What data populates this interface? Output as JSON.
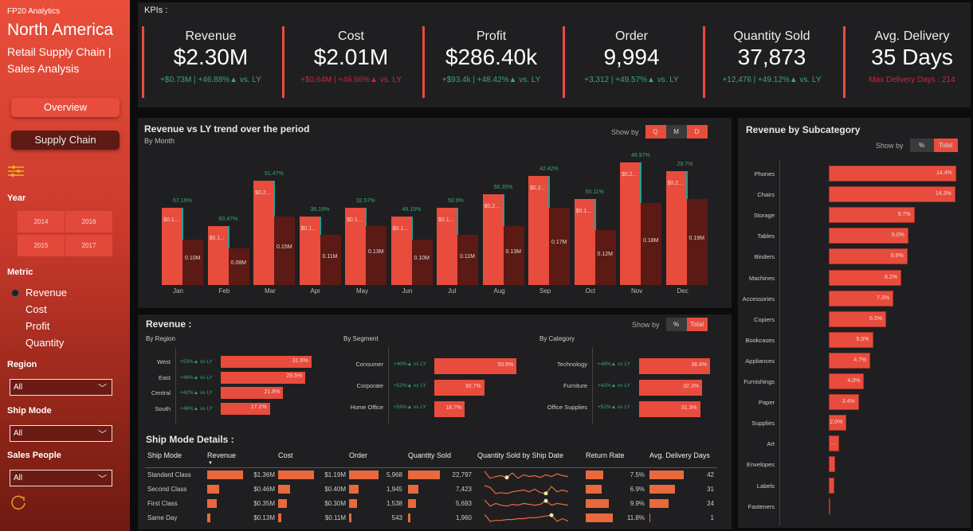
{
  "sidebar": {
    "brand": "FP20 Analytics",
    "title": "North America",
    "subtitle": "Retail Supply Chain | Sales Analysis",
    "nav": [
      {
        "label": "Overview"
      },
      {
        "label": "Supply Chain"
      }
    ],
    "filter_icon": "sliders-icon",
    "year_label": "Year",
    "years": [
      "2014",
      "2016",
      "2015",
      "2017"
    ],
    "metric_label": "Metric",
    "metrics": [
      {
        "label": "Revenue",
        "selected": true
      },
      {
        "label": "Cost",
        "selected": false
      },
      {
        "label": "Profit",
        "selected": false
      },
      {
        "label": "Quantity",
        "selected": false
      }
    ],
    "dropdowns": [
      {
        "label": "Region",
        "value": "All"
      },
      {
        "label": "Ship Mode",
        "value": "All"
      },
      {
        "label": "Sales People",
        "value": "All"
      }
    ],
    "reset_icon": "refresh-icon"
  },
  "kpis": {
    "header": "KPIs :",
    "items": [
      {
        "title": "Revenue",
        "value": "$2.30M",
        "delta": "+$0.73M | +46.88%▲ vs. LY",
        "negative": false
      },
      {
        "title": "Cost",
        "value": "$2.01M",
        "delta": "+$0.64M | +46.66%▲ vs. LY",
        "negative": true
      },
      {
        "title": "Profit",
        "value": "$286.40k",
        "delta": "+$93.4k | +48.42%▲ vs. LY",
        "negative": false
      },
      {
        "title": "Order",
        "value": "9,994",
        "delta": "+3,312 | +49.57%▲ vs. LY",
        "negative": false
      },
      {
        "title": "Quantity Sold",
        "value": "37,873",
        "delta": "+12,476 | +49.12%▲ vs. LY",
        "negative": false
      },
      {
        "title": "Avg. Delivery",
        "value": "35 Days",
        "delta": "Max Delivery Days : 214",
        "negative": true
      }
    ]
  },
  "trend": {
    "title": "Revenue vs LY trend over the period",
    "subtitle": "By Month",
    "showby_label": "Show by",
    "showby_options": [
      {
        "label": "Q",
        "active": true
      },
      {
        "label": "M",
        "active": false
      },
      {
        "label": "D",
        "active": true
      }
    ]
  },
  "chart_data": {
    "type": "bar",
    "categories": [
      "Jan",
      "Feb",
      "Mar",
      "Apr",
      "May",
      "Jun",
      "Jul",
      "Aug",
      "Sep",
      "Oct",
      "Nov",
      "Dec"
    ],
    "series": [
      {
        "values": [
          0.17,
          0.13,
          0.23,
          0.15,
          0.17,
          0.15,
          0.17,
          0.2,
          0.24,
          0.19,
          0.27,
          0.25
        ],
        "labels": [
          "$0.1...",
          "$0.1...",
          "$0.2...",
          "$0.1...",
          "$0.1...",
          "$0.1...",
          "$0.1...",
          "$0.2...",
          "$0.2...",
          "$0.1...",
          "$0.2...",
          "$0.2..."
        ]
      },
      {
        "values": [
          0.1,
          0.08,
          0.15,
          0.11,
          0.13,
          0.1,
          0.11,
          0.13,
          0.17,
          0.12,
          0.18,
          0.19
        ],
        "labels": [
          "0.10M",
          "0.08M",
          "0.15M",
          "0.11M",
          "0.13M",
          "0.10M",
          "0.11M",
          "0.13M",
          "0.17M",
          "0.12M",
          "0.18M",
          "0.19M"
        ]
      }
    ],
    "growth": [
      "67.19%",
      "60.47%",
      "51.47%",
      "36.19%",
      "32.57%",
      "49.15%",
      "50.9%",
      "56.35%",
      "42.42%",
      "55.11%",
      "48.97%",
      "29.7%"
    ],
    "colors": {
      "current": "#e84c3d",
      "ly": "#5c1a14",
      "growth": "#2a9d8f"
    }
  },
  "revenue": {
    "title": "Revenue :",
    "showby_label": "Show by",
    "showby_options": [
      {
        "label": "%",
        "active": false
      },
      {
        "label": "Total",
        "active": true
      }
    ],
    "groups": [
      {
        "title": "By Region",
        "items": [
          {
            "name": "West",
            "growth": "+53%▲ vs LY",
            "pct": 31.6,
            "label": "31.6%"
          },
          {
            "name": "East",
            "growth": "+46%▲ vs LY",
            "pct": 29.5,
            "label": "29.5%"
          },
          {
            "name": "Central",
            "growth": "+42%▲ vs LY",
            "pct": 21.8,
            "label": "21.8%"
          },
          {
            "name": "South",
            "growth": "+46%▲ vs LY",
            "pct": 17.1,
            "label": "17.1%"
          }
        ]
      },
      {
        "title": "By Segment",
        "items": [
          {
            "name": "Consumer",
            "growth": "+40%▲ vs LY",
            "pct": 50.6,
            "label": "50.6%"
          },
          {
            "name": "Corporate",
            "growth": "+52%▲ vs LY",
            "pct": 30.7,
            "label": "30.7%"
          },
          {
            "name": "Home Office",
            "growth": "+59%▲ vs LY",
            "pct": 18.7,
            "label": "18.7%"
          }
        ]
      },
      {
        "title": "By Category",
        "items": [
          {
            "name": "Technology",
            "growth": "+48%▲ vs LY",
            "pct": 36.4,
            "label": "36.4%"
          },
          {
            "name": "Furniture",
            "growth": "+41%▲ vs LY",
            "pct": 32.3,
            "label": "32.3%"
          },
          {
            "name": "Office Supplies",
            "growth": "+52%▲ vs LY",
            "pct": 31.3,
            "label": "31.3%"
          }
        ]
      }
    ]
  },
  "shipmode": {
    "title": "Ship Mode Details :",
    "columns": [
      "Ship Mode",
      "Revenue",
      "Cost",
      "Order",
      "Quantity Sold",
      "Quantity Sold by Ship Date",
      "Return Rate",
      "Avg. Delivery Days"
    ],
    "rows": [
      {
        "mode": "Standard Class",
        "revenue": 1.36,
        "revenue_label": "$1.36M",
        "cost": 1.19,
        "cost_label": "$1.19M",
        "order": 5968,
        "order_label": "5,968",
        "qty": 22797,
        "qty_label": "22,797",
        "return": 7.5,
        "return_label": "7.5%",
        "days": 42,
        "days_label": "42"
      },
      {
        "mode": "Second Class",
        "revenue": 0.46,
        "revenue_label": "$0.46M",
        "cost": 0.4,
        "cost_label": "$0.40M",
        "order": 1945,
        "order_label": "1,945",
        "qty": 7423,
        "qty_label": "7,423",
        "return": 6.9,
        "return_label": "6.9%",
        "days": 31,
        "days_label": "31"
      },
      {
        "mode": "First Class",
        "revenue": 0.35,
        "revenue_label": "$0.35M",
        "cost": 0.3,
        "cost_label": "$0.30M",
        "order": 1538,
        "order_label": "1,538",
        "qty": 5693,
        "qty_label": "5,693",
        "return": 9.9,
        "return_label": "9.9%",
        "days": 24,
        "days_label": "24"
      },
      {
        "mode": "Same Day",
        "revenue": 0.13,
        "revenue_label": "$0.13M",
        "cost": 0.11,
        "cost_label": "$0.11M",
        "order": 543,
        "order_label": "543",
        "qty": 1960,
        "qty_label": "1,960",
        "return": 11.8,
        "return_label": "11.8%",
        "days": 1,
        "days_label": "1"
      }
    ],
    "bar_color": "#e8693d"
  },
  "subcategory": {
    "title": "Revenue by Subcategory",
    "showby_label": "Show by",
    "showby_options": [
      {
        "label": "%",
        "active": false
      },
      {
        "label": "Total",
        "active": true
      }
    ],
    "items": [
      {
        "name": "Phones",
        "pct": 14.4,
        "label": "14.4%"
      },
      {
        "name": "Chairs",
        "pct": 14.3,
        "label": "14.3%"
      },
      {
        "name": "Storage",
        "pct": 9.7,
        "label": "9.7%"
      },
      {
        "name": "Tables",
        "pct": 9.0,
        "label": "9.0%"
      },
      {
        "name": "Binders",
        "pct": 8.9,
        "label": "8.9%"
      },
      {
        "name": "Machines",
        "pct": 8.2,
        "label": "8.2%"
      },
      {
        "name": "Accessories",
        "pct": 7.3,
        "label": "7.3%"
      },
      {
        "name": "Copiers",
        "pct": 6.5,
        "label": "6.5%"
      },
      {
        "name": "Bookcases",
        "pct": 5.0,
        "label": "5.0%"
      },
      {
        "name": "Appliances",
        "pct": 4.7,
        "label": "4.7%"
      },
      {
        "name": "Furnishings",
        "pct": 4.0,
        "label": "4.0%"
      },
      {
        "name": "Paper",
        "pct": 3.4,
        "label": "3.4%"
      },
      {
        "name": "Supplies",
        "pct": 2.0,
        "label": "2.0%"
      },
      {
        "name": "Art",
        "pct": 1.2,
        "label": "..."
      },
      {
        "name": "Envelopes",
        "pct": 0.7,
        "label": ""
      },
      {
        "name": "Labels",
        "pct": 0.6,
        "label": ""
      },
      {
        "name": "Fasteners",
        "pct": 0.1,
        "label": ""
      }
    ]
  }
}
